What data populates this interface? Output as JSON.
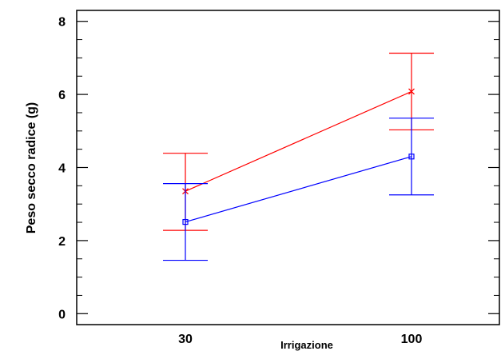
{
  "chart_data": {
    "type": "line",
    "title": "",
    "xlabel": "Irrigazione",
    "ylabel": "Peso secco radice (g)",
    "categories": [
      "30",
      "100"
    ],
    "ylim": [
      -0.3,
      8.3
    ],
    "yticks": [
      0,
      2,
      4,
      6,
      8
    ],
    "grid": false,
    "series": [
      {
        "color": "#ff0000",
        "marker": "x",
        "values": [
          3.35,
          6.08
        ],
        "error_low": [
          2.28,
          5.03
        ],
        "error_high": [
          4.39,
          7.13
        ]
      },
      {
        "color": "#0000ff",
        "marker": "square",
        "values": [
          2.51,
          4.3
        ],
        "error_low": [
          1.46,
          3.25
        ],
        "error_high": [
          3.56,
          5.35
        ]
      }
    ]
  }
}
